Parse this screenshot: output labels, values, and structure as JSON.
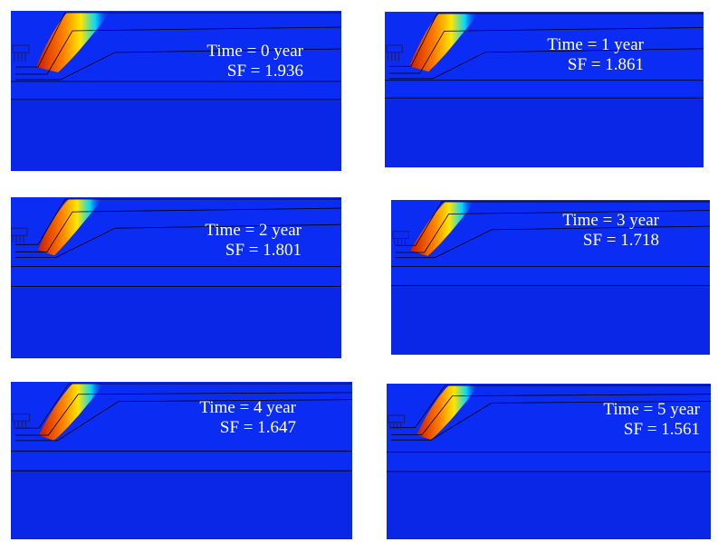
{
  "colors": {
    "background": "#0b2cf2",
    "deep": "#0a1fd8",
    "contour_line": "#000000",
    "label": "#ffffff",
    "hot_red": "#c81a00",
    "hot_orange": "#ff7a00",
    "hot_yellow": "#ffe600",
    "cyan": "#00d8ff",
    "rig": "#1a1a6e"
  },
  "panels": [
    {
      "time_label": "Time = 0 year",
      "sf_label": "SF = 1.936"
    },
    {
      "time_label": "Time = 1 year",
      "sf_label": "SF = 1.861"
    },
    {
      "time_label": "Time = 2 year",
      "sf_label": "SF = 1.801"
    },
    {
      "time_label": "Time = 3 year",
      "sf_label": "SF = 1.718"
    },
    {
      "time_label": "Time = 4 year",
      "sf_label": "SF = 1.647"
    },
    {
      "time_label": "Time = 5 year",
      "sf_label": "SF = 1.561"
    }
  ]
}
